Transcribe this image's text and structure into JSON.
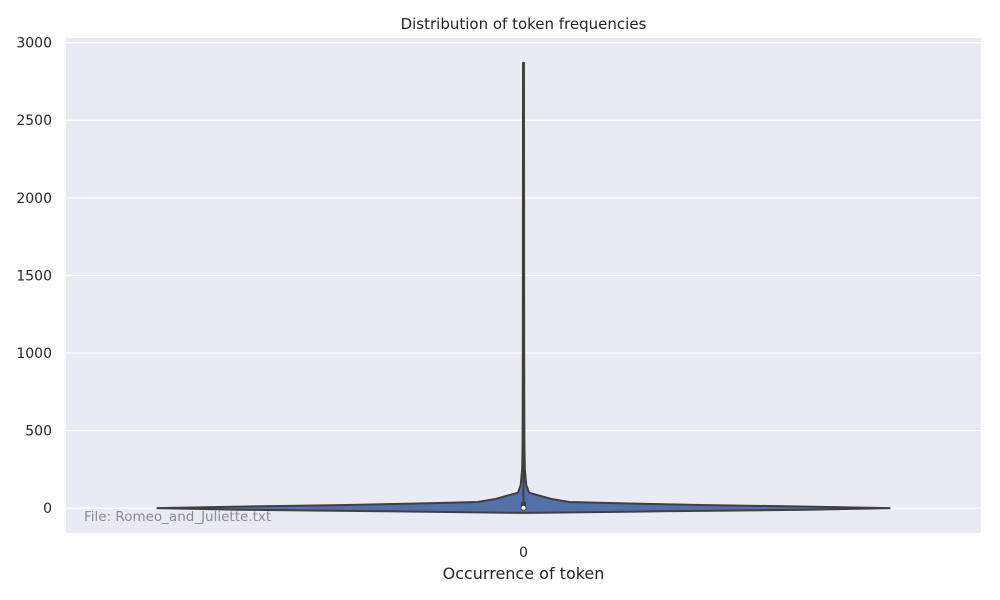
{
  "chart_data": {
    "type": "violin",
    "title": "Distribution of token frequencies",
    "xlabel": "Occurrence of token",
    "ylabel": "",
    "categories": [
      "0"
    ],
    "ylim": [
      -160,
      3030
    ],
    "yticks": [
      0,
      500,
      1000,
      1500,
      2000,
      2500,
      3000
    ],
    "grid": true,
    "violin": {
      "min": 1,
      "max": 2870,
      "median": 2,
      "fill_color": "#5470a8",
      "edge_color": "#3f3f3f",
      "profile": [
        {
          "y": -30,
          "w": 0.008
        },
        {
          "y": -20,
          "w": 0.3
        },
        {
          "y": -10,
          "w": 0.62
        },
        {
          "y": 0,
          "w": 0.8
        },
        {
          "y": 10,
          "w": 0.62
        },
        {
          "y": 20,
          "w": 0.4
        },
        {
          "y": 30,
          "w": 0.23
        },
        {
          "y": 40,
          "w": 0.1
        },
        {
          "y": 60,
          "w": 0.06
        },
        {
          "y": 100,
          "w": 0.012
        },
        {
          "y": 150,
          "w": 0.006
        },
        {
          "y": 250,
          "w": 0.003
        },
        {
          "y": 400,
          "w": 0.002
        },
        {
          "y": 900,
          "w": 0.0015
        },
        {
          "y": 2870,
          "w": 0.001
        }
      ]
    },
    "annotation": "File: Romeo_and_Juliette.txt",
    "colors": {
      "background": "#eaeaf2",
      "grid": "#ffffff",
      "text": "#262626"
    }
  }
}
